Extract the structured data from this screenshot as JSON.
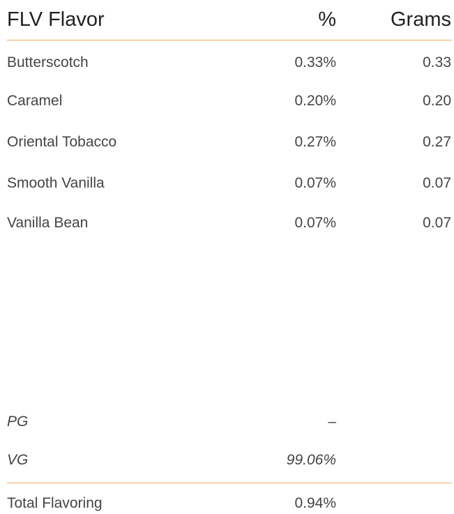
{
  "header": {
    "name": "FLV Flavor",
    "percent": "%",
    "grams": "Grams"
  },
  "rows": [
    [
      "Butterscotch",
      "0.33%",
      "0.33"
    ],
    [
      "Caramel",
      "0.20%",
      "0.20"
    ],
    [
      "Oriental Tobacco",
      "0.27%",
      "0.27"
    ],
    [
      "Smooth Vanilla",
      "0.07%",
      "0.07"
    ],
    [
      "Vanilla Bean",
      "0.07%",
      "0.07"
    ]
  ],
  "base": [
    [
      "PG",
      "–"
    ],
    [
      "VG",
      "99.06%"
    ]
  ],
  "total": [
    "Total Flavoring",
    "0.94%"
  ]
}
